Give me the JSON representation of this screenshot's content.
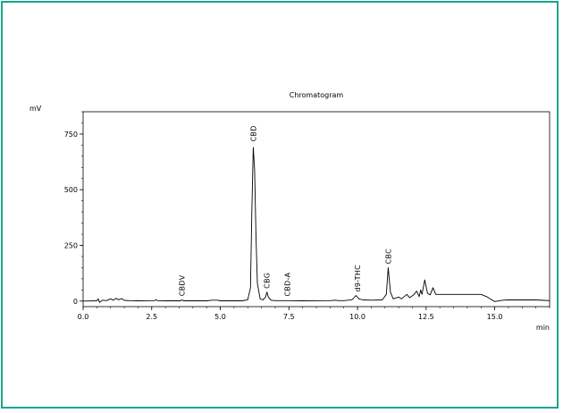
{
  "chart_data": {
    "type": "line",
    "title": "Chromatogram",
    "ylabel": "mV",
    "xlabel": "min",
    "xlim": [
      0,
      17
    ],
    "ylim": [
      -25,
      850
    ],
    "x_ticks": [
      0.0,
      2.5,
      5.0,
      7.5,
      10.0,
      12.5,
      15.0
    ],
    "x_tick_labels": [
      "0.0",
      "2.5",
      "5.0",
      "7.5",
      "10.0",
      "12.5",
      "15.0"
    ],
    "y_ticks": [
      0,
      250,
      500,
      750
    ],
    "y_tick_labels": [
      "0",
      "250",
      "500",
      "750"
    ],
    "grid": false,
    "legend": "none",
    "line_color": "#000000",
    "series": [
      {
        "values": [
          [
            0.0,
            0
          ],
          [
            0.5,
            1
          ],
          [
            0.55,
            10
          ],
          [
            0.6,
            -6
          ],
          [
            0.7,
            4
          ],
          [
            0.85,
            2
          ],
          [
            1.0,
            10
          ],
          [
            1.1,
            4
          ],
          [
            1.2,
            12
          ],
          [
            1.3,
            6
          ],
          [
            1.4,
            11
          ],
          [
            1.5,
            3
          ],
          [
            1.7,
            2
          ],
          [
            2.0,
            1
          ],
          [
            2.6,
            2
          ],
          [
            2.65,
            6
          ],
          [
            2.7,
            2
          ],
          [
            3.0,
            1
          ],
          [
            3.55,
            1
          ],
          [
            3.6,
            6
          ],
          [
            3.65,
            1
          ],
          [
            4.5,
            1
          ],
          [
            4.7,
            4
          ],
          [
            4.9,
            4
          ],
          [
            5.0,
            1
          ],
          [
            5.8,
            1
          ],
          [
            6.0,
            6
          ],
          [
            6.1,
            60
          ],
          [
            6.15,
            400
          ],
          [
            6.2,
            690
          ],
          [
            6.25,
            590
          ],
          [
            6.3,
            300
          ],
          [
            6.35,
            80
          ],
          [
            6.45,
            10
          ],
          [
            6.55,
            5
          ],
          [
            6.65,
            18
          ],
          [
            6.7,
            40
          ],
          [
            6.75,
            18
          ],
          [
            6.85,
            4
          ],
          [
            7.0,
            2
          ],
          [
            7.5,
            2
          ],
          [
            8.0,
            1
          ],
          [
            9.0,
            2
          ],
          [
            9.2,
            4
          ],
          [
            9.3,
            2
          ],
          [
            9.5,
            2
          ],
          [
            9.8,
            6
          ],
          [
            9.95,
            25
          ],
          [
            10.05,
            10
          ],
          [
            10.2,
            5
          ],
          [
            10.5,
            4
          ],
          [
            10.9,
            5
          ],
          [
            11.05,
            30
          ],
          [
            11.12,
            150
          ],
          [
            11.2,
            40
          ],
          [
            11.3,
            10
          ],
          [
            11.5,
            18
          ],
          [
            11.6,
            10
          ],
          [
            11.8,
            30
          ],
          [
            11.9,
            15
          ],
          [
            12.05,
            28
          ],
          [
            12.15,
            45
          ],
          [
            12.25,
            20
          ],
          [
            12.3,
            50
          ],
          [
            12.35,
            30
          ],
          [
            12.45,
            95
          ],
          [
            12.55,
            35
          ],
          [
            12.65,
            28
          ],
          [
            12.75,
            60
          ],
          [
            12.85,
            30
          ],
          [
            13.0,
            30
          ],
          [
            14.5,
            30
          ],
          [
            14.7,
            20
          ],
          [
            14.9,
            5
          ],
          [
            15.0,
            -2
          ],
          [
            15.3,
            4
          ],
          [
            15.5,
            5
          ],
          [
            16.0,
            5
          ],
          [
            16.5,
            5
          ],
          [
            16.8,
            3
          ],
          [
            17.0,
            2
          ]
        ]
      }
    ],
    "annotations": [
      {
        "text": "CBDV",
        "x": 3.6,
        "y": 6
      },
      {
        "text": "CBD",
        "x": 6.2,
        "y": 700
      },
      {
        "text": "CBG",
        "x": 6.7,
        "y": 40
      },
      {
        "text": "CBD-A",
        "x": 7.45,
        "y": 5
      },
      {
        "text": "d9-THC",
        "x": 10.0,
        "y": 25
      },
      {
        "text": "CBC",
        "x": 11.12,
        "y": 150
      }
    ]
  }
}
